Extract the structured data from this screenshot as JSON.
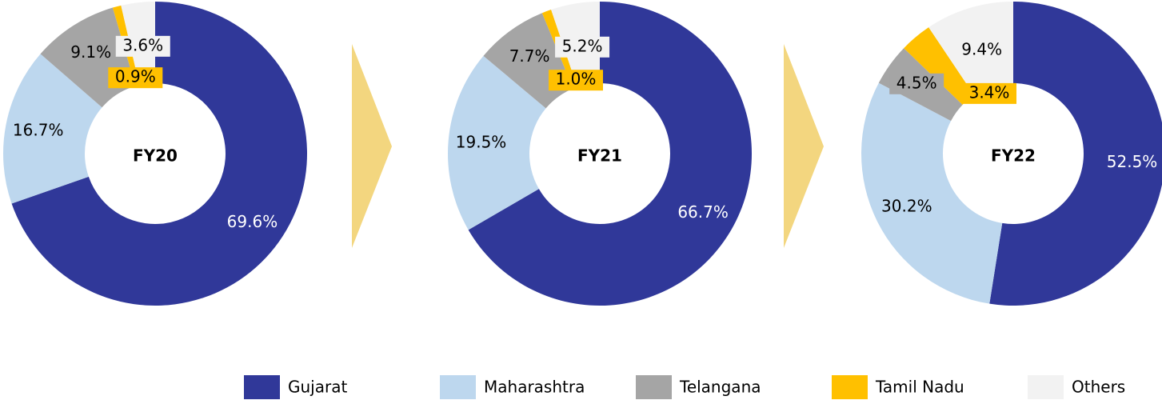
{
  "chart_data": [
    {
      "type": "donut",
      "center_label": "FY20",
      "categories": [
        "Gujarat",
        "Maharashtra",
        "Telangana",
        "Tamil Nadu",
        "Others"
      ],
      "values": [
        69.6,
        16.7,
        9.1,
        0.9,
        3.6
      ],
      "value_labels": [
        "69.6%",
        "16.7%",
        "9.1%",
        "0.9%",
        "3.6%"
      ],
      "colors": [
        "#303899",
        "#bdd7ee",
        "#a5a5a5",
        "#ffc000",
        "#f2f2f2"
      ]
    },
    {
      "type": "donut",
      "center_label": "FY21",
      "categories": [
        "Gujarat",
        "Maharashtra",
        "Telangana",
        "Tamil Nadu",
        "Others"
      ],
      "values": [
        66.7,
        19.5,
        7.7,
        1.0,
        5.2
      ],
      "value_labels": [
        "66.7%",
        "19.5%",
        "7.7%",
        "1.0%",
        "5.2%"
      ],
      "colors": [
        "#303899",
        "#bdd7ee",
        "#a5a5a5",
        "#ffc000",
        "#f2f2f2"
      ]
    },
    {
      "type": "donut",
      "center_label": "FY22",
      "categories": [
        "Gujarat",
        "Maharashtra",
        "Telangana",
        "Tamil Nadu",
        "Others"
      ],
      "values": [
        52.5,
        30.2,
        4.5,
        3.4,
        9.4
      ],
      "value_labels": [
        "52.5%",
        "30.2%",
        "4.5%",
        "3.4%",
        "9.4%"
      ],
      "colors": [
        "#303899",
        "#bdd7ee",
        "#a5a5a5",
        "#ffc000",
        "#f2f2f2"
      ]
    }
  ]
}
